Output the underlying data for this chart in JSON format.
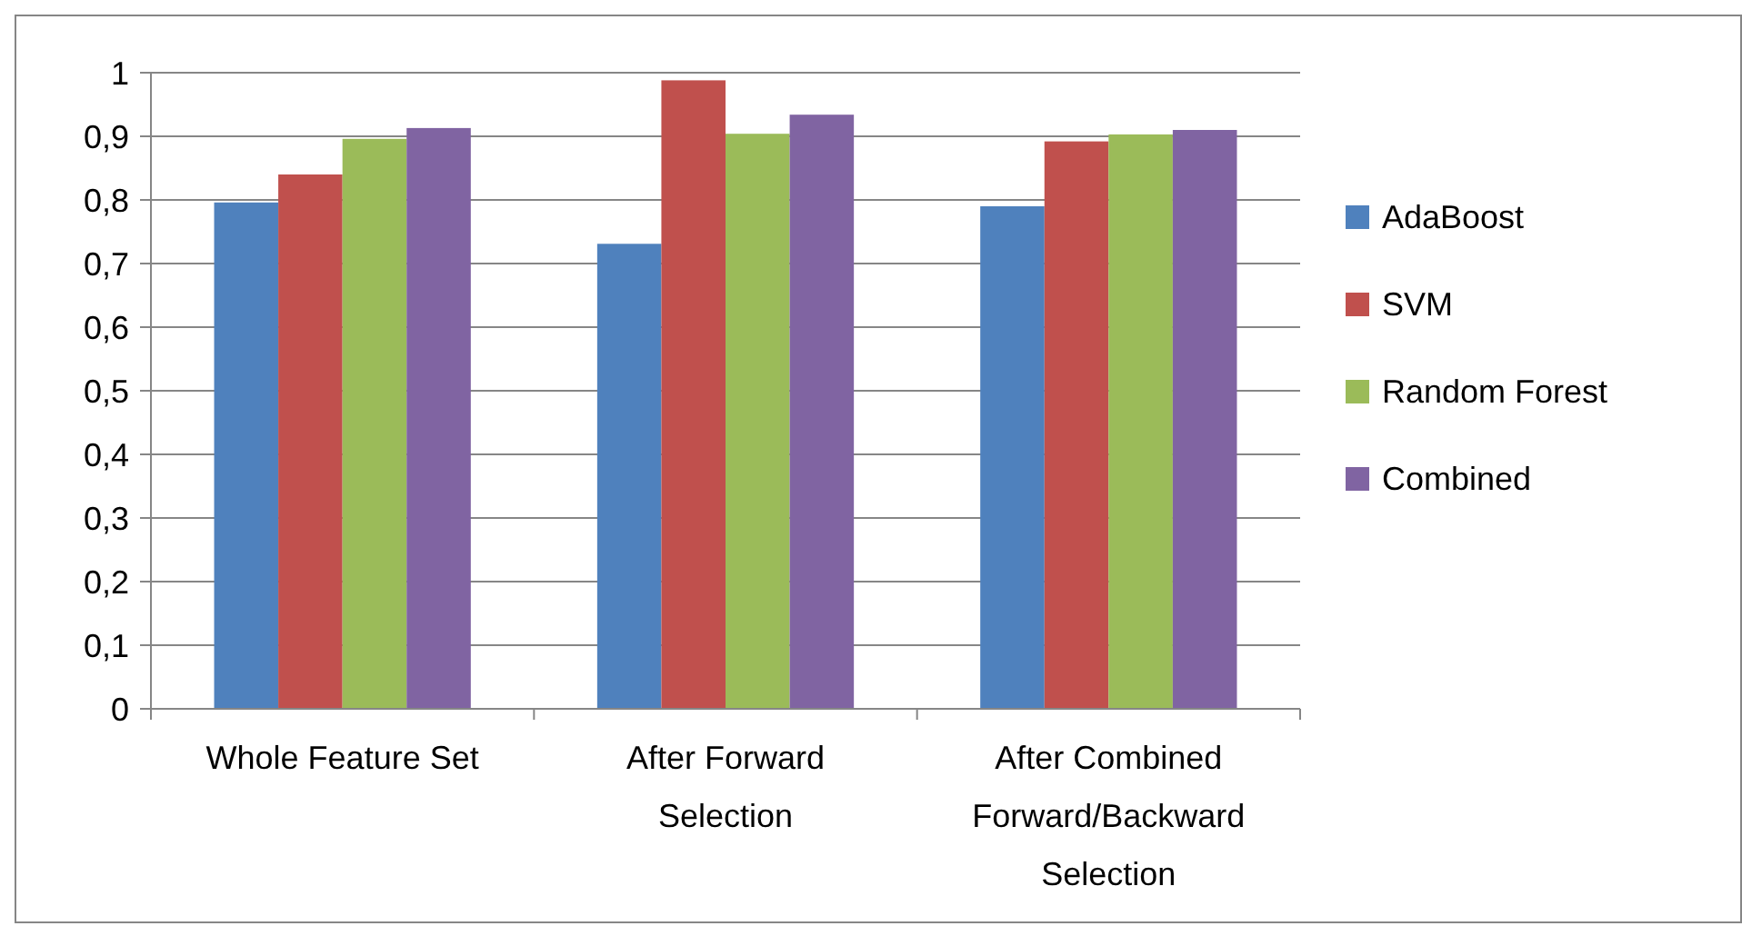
{
  "chart_data": {
    "type": "bar",
    "categories": [
      "Whole Feature Set",
      "After Forward Selection",
      "After Combined Forward/Backward Selection"
    ],
    "series": [
      {
        "name": "AdaBoost",
        "color": "#4f81bd",
        "values": [
          0.796,
          0.731,
          0.79
        ]
      },
      {
        "name": "SVM",
        "color": "#c0504d",
        "values": [
          0.84,
          0.988,
          0.892
        ]
      },
      {
        "name": "Random Forest",
        "color": "#9bbb59",
        "values": [
          0.896,
          0.904,
          0.903
        ]
      },
      {
        "name": "Combined",
        "color": "#8064a2",
        "values": [
          0.913,
          0.934,
          0.91
        ]
      }
    ],
    "ylim": [
      0,
      1
    ],
    "yticks": [
      0,
      {
        "value": 0.1,
        "label": "0,1"
      },
      {
        "value": 0.2,
        "label": "0,2"
      },
      {
        "value": 0.3,
        "label": "0,3"
      },
      {
        "value": 0.4,
        "label": "0,4"
      },
      {
        "value": 0.5,
        "label": "0,5"
      },
      {
        "value": 0.6,
        "label": "0,6"
      },
      {
        "value": 0.7,
        "label": "0,7"
      },
      {
        "value": 0.8,
        "label": "0,8"
      },
      {
        "value": 0.9,
        "label": "0,9"
      },
      1
    ],
    "grid": "y",
    "legend": "right"
  }
}
